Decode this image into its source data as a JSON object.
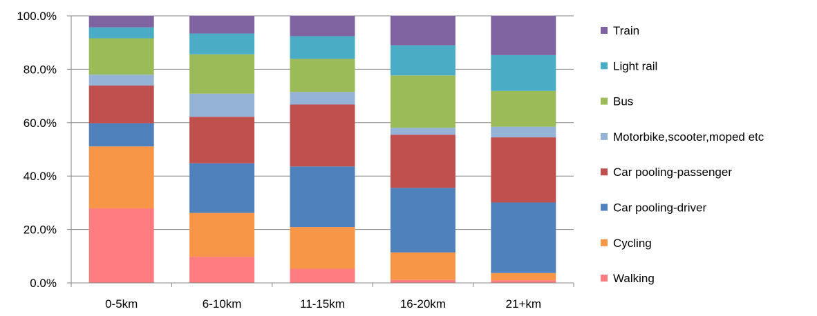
{
  "chart_data": {
    "type": "bar",
    "stacked": true,
    "categories": [
      "0-5km",
      "6-10km",
      "11-15km",
      "16-20km",
      "21+km"
    ],
    "series": [
      {
        "name": "Walking",
        "color": "#FF7C80",
        "values": [
          27.9,
          9.8,
          5.3,
          1.1,
          1.0
        ]
      },
      {
        "name": "Cycling",
        "color": "#F79646",
        "values": [
          23.2,
          16.4,
          15.6,
          10.3,
          2.7
        ]
      },
      {
        "name": "Car pooling-driver",
        "color": "#4F81BD",
        "values": [
          8.7,
          18.6,
          22.7,
          24.2,
          26.4
        ]
      },
      {
        "name": "Car pooling-passenger",
        "color": "#C0504D",
        "values": [
          14.1,
          17.4,
          23.2,
          19.9,
          24.4
        ]
      },
      {
        "name": "Motorbike,scooter,moped etc",
        "color": "#95B3D7",
        "values": [
          4.1,
          8.7,
          4.7,
          2.6,
          4.0
        ]
      },
      {
        "name": "Bus",
        "color": "#9BBB59",
        "values": [
          13.6,
          14.7,
          12.4,
          19.6,
          13.4
        ]
      },
      {
        "name": "Light rail",
        "color": "#4BACC6",
        "values": [
          4.1,
          7.8,
          8.5,
          11.3,
          13.4
        ]
      },
      {
        "name": "Train",
        "color": "#8064A2",
        "values": [
          4.3,
          6.6,
          7.6,
          11.0,
          14.7
        ]
      }
    ],
    "y_ticks": [
      "0.0%",
      "20.0%",
      "40.0%",
      "60.0%",
      "80.0%",
      "100.0%"
    ],
    "ylim": [
      0,
      100
    ],
    "grid": true,
    "legend_position": "right",
    "legend_order": [
      "Train",
      "Light rail",
      "Bus",
      "Motorbike,scooter,moped etc",
      "Car pooling-passenger",
      "Car pooling-driver",
      "Cycling",
      "Walking"
    ]
  }
}
